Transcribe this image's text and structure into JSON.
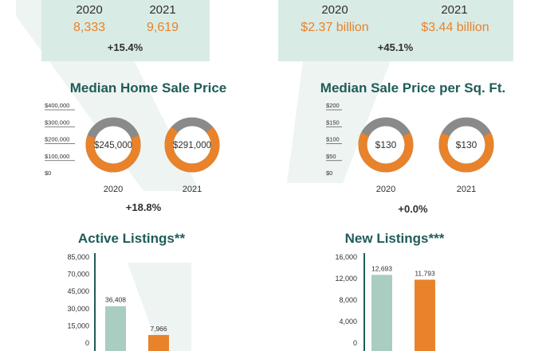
{
  "colors": {
    "orange": "#e8822b",
    "gray": "#8a8a8a",
    "teal": "#a9cdc0",
    "dark": "#1f5c58",
    "panel": "#d9ebe5"
  },
  "closed_sales": {
    "year1": "2020",
    "year2": "2021",
    "value1": "8,333",
    "value2": "9,619",
    "change": "+15.4%"
  },
  "dollar_volume": {
    "year1": "2020",
    "year2": "2021",
    "value1": "$2.37 billion",
    "value2": "$3.44 billion",
    "change": "+45.1%"
  },
  "median_price": {
    "title": "Median Home Sale Price",
    "change": "+18.8%"
  },
  "price_sqft": {
    "title": "Median Sale Price per Sq. Ft.",
    "change": "+0.0%"
  },
  "active_listings": {
    "title": "Active Listings**"
  },
  "new_listings": {
    "title": "New Listings***"
  },
  "chart_data": [
    {
      "type": "pie",
      "title": "Median Home Sale Price",
      "scale_ticks": [
        "$400,000",
        "$300,000",
        "$200,000",
        "$100,000",
        "$0"
      ],
      "ylim": [
        0,
        400000
      ],
      "categories": [
        "2020",
        "2021"
      ],
      "values": [
        245000,
        291000
      ],
      "labels": [
        "$245,000",
        "$291,000"
      ]
    },
    {
      "type": "pie",
      "title": "Median Sale Price per Sq. Ft.",
      "scale_ticks": [
        "$200",
        "$150",
        "$100",
        "$50",
        "$0"
      ],
      "ylim": [
        0,
        200
      ],
      "categories": [
        "2020",
        "2021"
      ],
      "values": [
        130,
        130
      ],
      "labels": [
        "$130",
        "$130"
      ]
    },
    {
      "type": "bar",
      "title": "Active Listings**",
      "y_ticks": [
        "85,000",
        "70,000",
        "45,000",
        "30,000",
        "15,000",
        "0"
      ],
      "ylim": [
        0,
        85000
      ],
      "values": [
        36408,
        7966
      ],
      "labels": [
        "36,408",
        "7,966"
      ]
    },
    {
      "type": "bar",
      "title": "New Listings***",
      "y_ticks": [
        "16,000",
        "12,000",
        "8,000",
        "4,000",
        "0"
      ],
      "ylim": [
        0,
        16000
      ],
      "values": [
        12693,
        11793
      ],
      "labels": [
        "12,693",
        "11,793"
      ]
    }
  ]
}
